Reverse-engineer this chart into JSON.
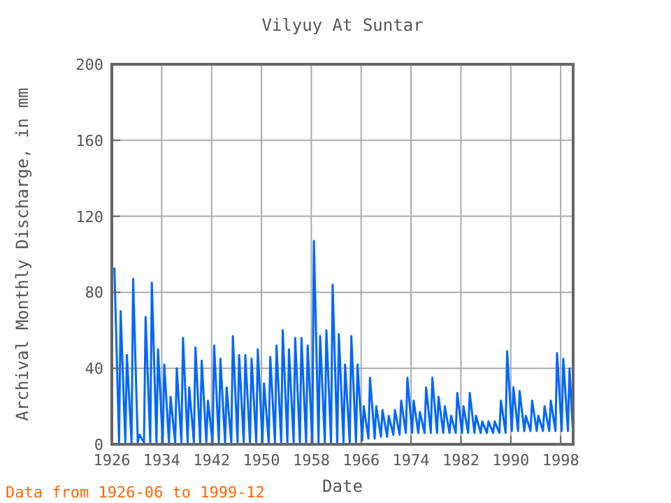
{
  "chart_data": {
    "type": "line",
    "title": "Vilyuy At Suntar",
    "xlabel": "Date",
    "ylabel": "Archival Monthly Discharge, in mm",
    "annotations": [
      "Data from 1926-06 to 1999-12"
    ],
    "xlim": [
      "1926",
      "2000"
    ],
    "xticks": [
      "1926",
      "1934",
      "1942",
      "1950",
      "1958",
      "1966",
      "1974",
      "1982",
      "1990",
      "1998"
    ],
    "ylim": [
      0,
      200
    ],
    "yticks": [
      0,
      40,
      80,
      120,
      160,
      200
    ],
    "grid": true,
    "series": [
      {
        "color": "#0066ff",
        "x": [
          "1926-06",
          "1927-03",
          "1927-06",
          "1928-03",
          "1928-06",
          "1929-03",
          "1929-06",
          "1930-03",
          "1930-06",
          "1931-03",
          "1931-06",
          "1932-03",
          "1932-06",
          "1933-03",
          "1933-06",
          "1934-03",
          "1934-06",
          "1935-03",
          "1935-06",
          "1936-03",
          "1936-06",
          "1937-03",
          "1937-06",
          "1938-03",
          "1938-06",
          "1939-03",
          "1939-06",
          "1940-03",
          "1940-06",
          "1941-03",
          "1941-06",
          "1942-03",
          "1942-06",
          "1943-03",
          "1943-06",
          "1944-03",
          "1944-06",
          "1945-03",
          "1945-06",
          "1946-03",
          "1946-06",
          "1947-03",
          "1947-06",
          "1948-03",
          "1948-06",
          "1949-03",
          "1949-06",
          "1950-03",
          "1950-06",
          "1951-03",
          "1951-06",
          "1952-03",
          "1952-06",
          "1953-03",
          "1953-06",
          "1954-03",
          "1954-06",
          "1955-03",
          "1955-06",
          "1956-03",
          "1956-06",
          "1957-03",
          "1957-06",
          "1958-03",
          "1958-06",
          "1959-03",
          "1959-06",
          "1960-03",
          "1960-06",
          "1961-03",
          "1961-06",
          "1962-03",
          "1962-06",
          "1963-03",
          "1963-06",
          "1964-03",
          "1964-06",
          "1965-03",
          "1965-06",
          "1966-03",
          "1966-06",
          "1967-03",
          "1967-06",
          "1968-03",
          "1968-06",
          "1969-03",
          "1969-06",
          "1970-03",
          "1970-06",
          "1971-03",
          "1971-06",
          "1972-03",
          "1972-06",
          "1973-03",
          "1973-06",
          "1974-03",
          "1974-06",
          "1975-03",
          "1975-06",
          "1976-03",
          "1976-06",
          "1977-03",
          "1977-06",
          "1978-03",
          "1978-06",
          "1979-03",
          "1979-06",
          "1980-03",
          "1980-06",
          "1981-03",
          "1981-06",
          "1982-03",
          "1982-06",
          "1983-03",
          "1983-06",
          "1984-03",
          "1984-06",
          "1985-03",
          "1985-06",
          "1986-03",
          "1986-06",
          "1987-03",
          "1987-06",
          "1988-03",
          "1988-06",
          "1989-03",
          "1989-06",
          "1990-03",
          "1990-06",
          "1991-03",
          "1991-06",
          "1992-03",
          "1992-06",
          "1993-03",
          "1993-06",
          "1994-03",
          "1994-06",
          "1995-03",
          "1995-06",
          "1996-03",
          "1996-06",
          "1997-03",
          "1997-06",
          "1998-03",
          "1998-06",
          "1999-03",
          "1999-06",
          "1999-12"
        ],
        "values": [
          93,
          1,
          70,
          1,
          47,
          1,
          87,
          1,
          5,
          1,
          67,
          1,
          85,
          1,
          50,
          1,
          42,
          1,
          25,
          1,
          40,
          1,
          56,
          1,
          30,
          1,
          51,
          1,
          44,
          1,
          23,
          1,
          52,
          1,
          45,
          1,
          30,
          1,
          57,
          1,
          47,
          1,
          47,
          1,
          45,
          1,
          50,
          1,
          32,
          1,
          46,
          1,
          52,
          1,
          60,
          1,
          50,
          1,
          56,
          1,
          56,
          1,
          52,
          1,
          107,
          1,
          57,
          1,
          60,
          1,
          84,
          1,
          58,
          1,
          42,
          1,
          57,
          1,
          42,
          2,
          20,
          3,
          35,
          3,
          20,
          4,
          18,
          4,
          15,
          5,
          18,
          5,
          23,
          6,
          35,
          6,
          23,
          6,
          17,
          6,
          30,
          6,
          35,
          6,
          25,
          6,
          20,
          6,
          15,
          6,
          27,
          6,
          20,
          6,
          27,
          6,
          15,
          6,
          12,
          6,
          12,
          6,
          12,
          6,
          23,
          6,
          49,
          7,
          30,
          7,
          28,
          7,
          15,
          7,
          23,
          7,
          15,
          7,
          20,
          7,
          23,
          7,
          48,
          7,
          45,
          7,
          40,
          9
        ]
      }
    ]
  }
}
